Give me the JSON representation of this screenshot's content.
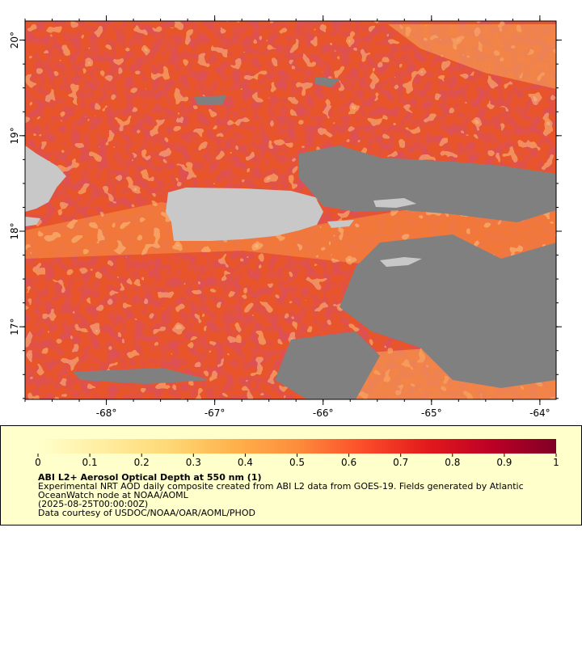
{
  "map": {
    "lon_range": [
      -68.75,
      -63.85
    ],
    "lat_range": [
      16.24,
      20.2
    ],
    "lon_ticks": [
      {
        "value": -68,
        "label": "-68°"
      },
      {
        "value": -67,
        "label": "-67°"
      },
      {
        "value": -66,
        "label": "-66°"
      },
      {
        "value": -65,
        "label": "-65°"
      },
      {
        "value": -64,
        "label": "-64°"
      }
    ],
    "lat_ticks": [
      {
        "value": 17,
        "label": "17°"
      },
      {
        "value": 18,
        "label": "18°"
      },
      {
        "value": 19,
        "label": "19°"
      },
      {
        "value": 20,
        "label": "20°"
      }
    ]
  },
  "colorbar": {
    "range": [
      0,
      1
    ],
    "ticks": [
      0,
      0.1,
      0.2,
      0.3,
      0.4,
      0.5,
      0.6,
      0.7,
      0.8,
      0.9,
      1
    ],
    "colors": [
      "#ffffcc",
      "#ffeda0",
      "#fed976",
      "#feb24c",
      "#fd8d3c",
      "#fc4e2a",
      "#e31a1c",
      "#bd0026",
      "#800026"
    ]
  },
  "legend": {
    "title": "ABI L2+ Aerosol Optical Depth at 550 nm (1)",
    "lines": [
      "Experimental NRT AOD daily composite created from ABI L2 data from GOES-19. Fields generated by Atlantic",
      "OceanWatch node at NOAA/AOML",
      "(2025-08-25T00:00:00Z)",
      "Data courtesy of USDOC/NOAA/OAR/AOML/PHOD"
    ]
  }
}
